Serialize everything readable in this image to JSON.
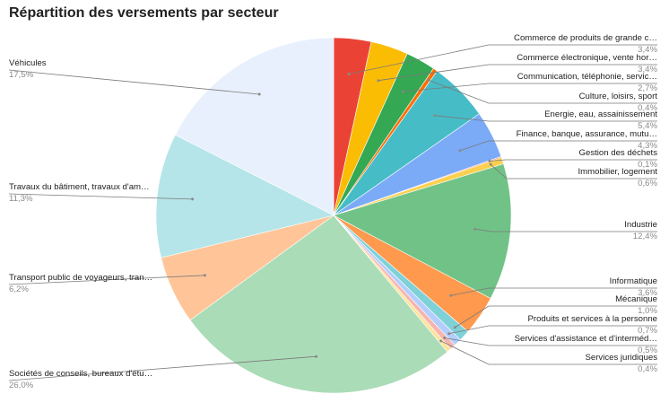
{
  "chart_data": {
    "type": "pie",
    "title": "Répartition des versements par secteur",
    "slices": [
      {
        "label": "Commerce de produits de grande c…",
        "pct_label": "3,4%",
        "value": 3.4,
        "color": "#ea4335"
      },
      {
        "label": "Commerce électronique, vente hor…",
        "pct_label": "3,4%",
        "value": 3.4,
        "color": "#fbbc04"
      },
      {
        "label": "Communication, téléphonie, servic…",
        "pct_label": "2,7%",
        "value": 2.7,
        "color": "#34a853"
      },
      {
        "label": "Culture, loisirs, sport",
        "pct_label": "0,4%",
        "value": 0.4,
        "color": "#ff6d01"
      },
      {
        "label": "Energie, eau, assainissement",
        "pct_label": "5,4%",
        "value": 5.4,
        "color": "#46bdc6"
      },
      {
        "label": "Finance, banque, assurance, mutu…",
        "pct_label": "4,3%",
        "value": 4.3,
        "color": "#7baaf7"
      },
      {
        "label": "Gestion des déchets",
        "pct_label": "0,1%",
        "value": 0.1,
        "color": "#f07b72"
      },
      {
        "label": "Immobilier, logement",
        "pct_label": "0,6%",
        "value": 0.6,
        "color": "#fcd04f"
      },
      {
        "label": "Industrie",
        "pct_label": "12,4%",
        "value": 12.4,
        "color": "#71c287"
      },
      {
        "label": "Informatique",
        "pct_label": "3,6%",
        "value": 3.6,
        "color": "#ff994d"
      },
      {
        "label": "Mécanique",
        "pct_label": "1,0%",
        "value": 1.0,
        "color": "#7ed1d7"
      },
      {
        "label": "Produits et services à la personne",
        "pct_label": "0,7%",
        "value": 0.7,
        "color": "#b3cefb"
      },
      {
        "label": "Services d'assistance et d'interméd…",
        "pct_label": "0,5%",
        "value": 0.5,
        "color": "#f7b4ae"
      },
      {
        "label": "Services juridiques",
        "pct_label": "0,4%",
        "value": 0.4,
        "color": "#fde49b"
      },
      {
        "label": "Sociétés de conseils, bureaux d'étu…",
        "pct_label": "26,0%",
        "value": 26.0,
        "color": "#aadcb7"
      },
      {
        "label": "Transport public de voyageurs, tran…",
        "pct_label": "6,2%",
        "value": 6.2,
        "color": "#ffc599"
      },
      {
        "label": "Travaux du bâtiment, travaux d'am…",
        "pct_label": "11,3%",
        "value": 11.3,
        "color": "#b5e5e8"
      },
      {
        "label": "Véhicules",
        "pct_label": "17,5%",
        "value": 17.5,
        "color": "#e8f0fd"
      }
    ],
    "start_angle_deg": 0,
    "direction": "clockwise",
    "legend": "labeled slices"
  }
}
